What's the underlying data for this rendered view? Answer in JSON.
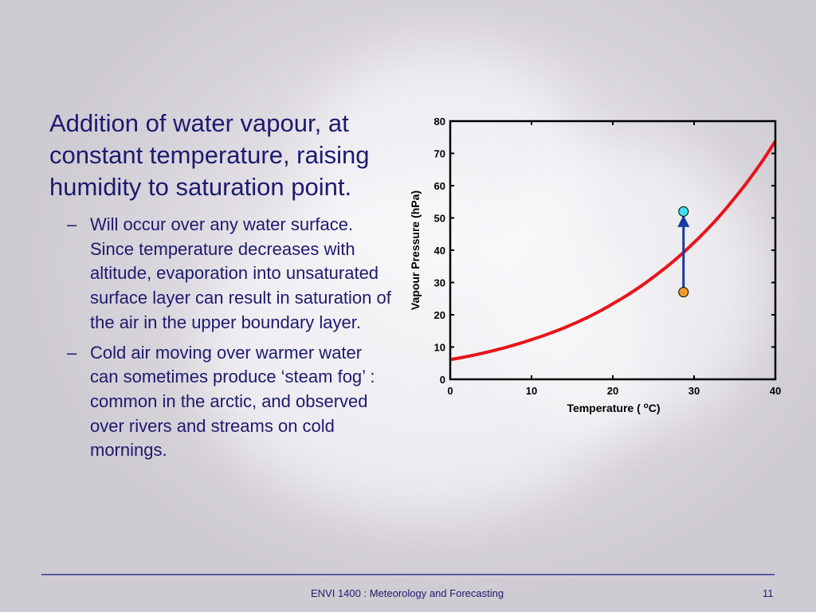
{
  "slide": {
    "main_point": "Addition of water vapour, at constant temperature, raising humidity to saturation point.",
    "bullets": [
      "Will occur over any water surface. Since temperature decreases with altitude, evaporation into unsaturated surface layer can result in saturation of the air in the upper boundary layer.",
      "Cold air moving over warmer water can sometimes produce ‘steam fog’ : common in the arctic, and observed over rivers and streams on cold mornings."
    ],
    "bullet_marker": "–"
  },
  "footer": {
    "text": "ENVI 1400 : Meteorology and Forecasting",
    "page_number": "11"
  },
  "colors": {
    "text": "#1d1a6e",
    "curve": "#e8141a",
    "arrow": "#1a3a9e",
    "start_point": "#f39a2b",
    "end_point": "#3de0ea"
  },
  "chart_data": {
    "type": "line",
    "xlabel": "Temperature (°C)",
    "ylabel": "Vapour Pressure (hPa)",
    "xlim": [
      0,
      40
    ],
    "ylim": [
      0,
      80
    ],
    "xticks": [
      0,
      10,
      20,
      30,
      40
    ],
    "yticks": [
      0,
      10,
      20,
      30,
      40,
      50,
      60,
      70,
      80
    ],
    "grid": false,
    "series": [
      {
        "x": [
          0,
          5,
          10,
          15,
          20,
          25,
          30,
          35,
          40
        ],
        "y": [
          6.1,
          8.7,
          12.3,
          17.0,
          23.4,
          31.7,
          42.4,
          56.2,
          73.8
        ]
      }
    ],
    "points": [
      {
        "x": 28.7,
        "y": 27
      },
      {
        "x": 28.7,
        "y": 52
      }
    ],
    "arrow": {
      "from": [
        28.7,
        27
      ],
      "to": [
        28.7,
        52
      ]
    }
  }
}
